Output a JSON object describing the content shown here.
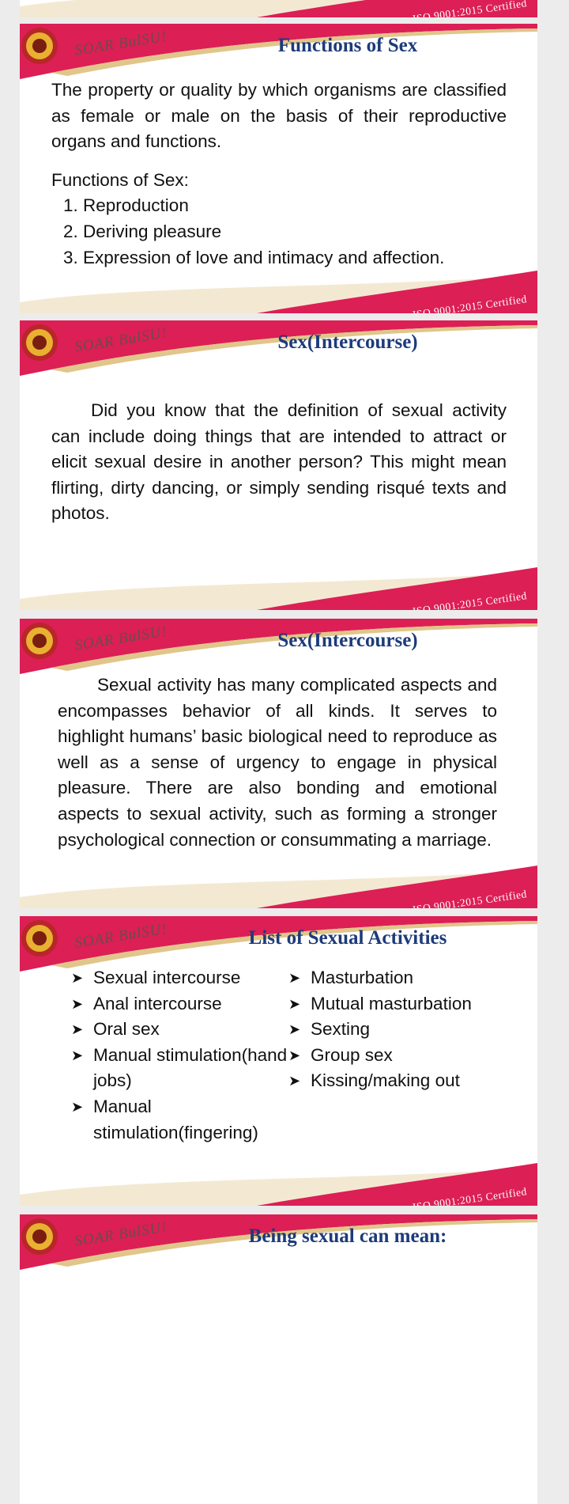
{
  "top_fragment": {
    "footer": "ISO 9001:2015 Certified"
  },
  "slides": [
    {
      "brand": "SOAR BulSU!",
      "title": "Functions of Sex",
      "paragraphs": [
        "The property or quality by which organisms are classified as female or male on the basis of their reproductive organs and functions."
      ],
      "subheading": "Functions of Sex:",
      "numbered": [
        "Reproduction",
        "Deriving pleasure",
        "Expression of love and intimacy and affection."
      ],
      "footer": "ISO 9001:2015 Certified"
    },
    {
      "brand": "SOAR BulSU!",
      "title": "Sex(Intercourse)",
      "paragraphs": [
        "Did you know that the definition of sexual activity can include doing things that are intended to attract or elicit sexual desire in another person? This might mean flirting, dirty dancing, or simply sending risqué texts and photos."
      ],
      "footer": "ISO 9001:2015 Certified"
    },
    {
      "brand": "SOAR BulSU!",
      "title": "Sex(Intercourse)",
      "paragraphs": [
        "Sexual activity has many complicated aspects and encompasses behavior of all kinds. It serves to highlight humans’ basic biological need to reproduce as well as a sense of urgency to engage in physical pleasure. There are also bonding and emotional aspects to sexual activity, such as forming a stronger psychological connection or consummating a marriage."
      ],
      "footer": "ISO 9001:2015 Certified"
    },
    {
      "brand": "SOAR BulSU!",
      "title": "List of Sexual Activities",
      "bullets_left": [
        "Sexual intercourse",
        "Anal intercourse",
        "Oral sex",
        "Manual stimulation(hand jobs)",
        "Manual stimulation(fingering)"
      ],
      "bullets_right": [
        "Masturbation",
        "Mutual masturbation",
        "Sexting",
        "Group sex",
        "Kissing/making out"
      ],
      "footer": "ISO 9001:2015 Certified"
    },
    {
      "brand": "SOAR BulSU!",
      "title": "Being sexual can mean:"
    }
  ]
}
